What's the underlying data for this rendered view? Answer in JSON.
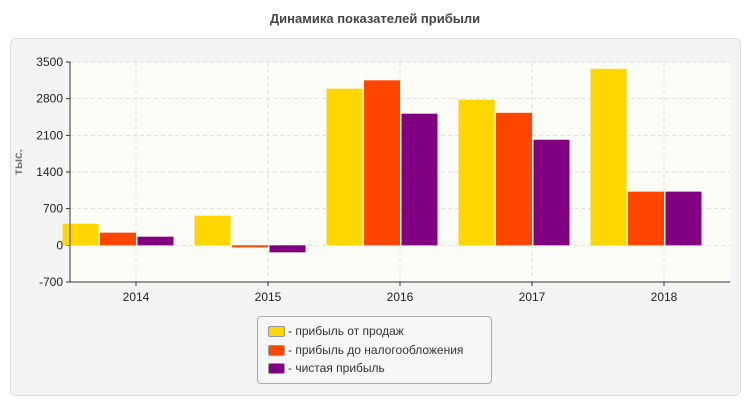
{
  "chart_data": {
    "type": "bar",
    "title": "Динамика показателей прибыли",
    "ylabel": "тыс.",
    "xlabel": "",
    "categories": [
      "2014",
      "2015",
      "2016",
      "2017",
      "2018"
    ],
    "ylim": [
      -700,
      3500
    ],
    "yticks": [
      -700,
      0,
      700,
      1400,
      2100,
      2800,
      3500
    ],
    "grid": true,
    "legend_position": "bottom",
    "series": [
      {
        "name": "- прибыль от продаж",
        "color": "#FFD700",
        "values": [
          413,
          566,
          2990,
          2780,
          3370
        ]
      },
      {
        "name": "- прибыль до налогообложения",
        "color": "#FF4500",
        "values": [
          242,
          -38,
          3150,
          2530,
          1025
        ]
      },
      {
        "name": "- чистая прибыль",
        "color": "#800080",
        "values": [
          165,
          -134,
          2513,
          2016,
          1025
        ]
      }
    ]
  }
}
